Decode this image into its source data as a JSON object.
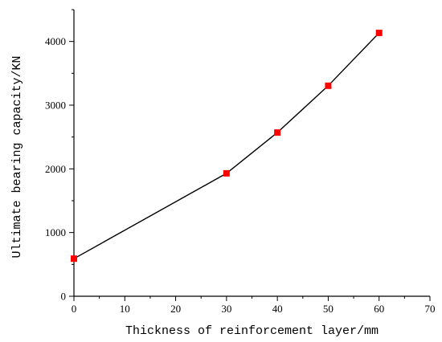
{
  "chart_data": {
    "type": "line",
    "title": "",
    "xlabel": "Thickness of reinforcement layer/mm",
    "ylabel": "Ultimate bearing capacity/KN",
    "xlim": [
      0,
      70
    ],
    "ylim": [
      0,
      4500
    ],
    "x_ticks": [
      "0",
      "10",
      "20",
      "30",
      "40",
      "50",
      "60",
      "70"
    ],
    "y_ticks": [
      "0",
      "1000",
      "2000",
      "3000",
      "4000"
    ],
    "grid": false,
    "legend": "none",
    "marker": "square",
    "colors": {
      "line": "#000000",
      "marker": "#ff0000"
    },
    "series": [
      {
        "x": [
          0,
          30,
          40,
          50,
          60
        ],
        "y": [
          590,
          1930,
          2570,
          3305,
          4135
        ]
      }
    ]
  }
}
